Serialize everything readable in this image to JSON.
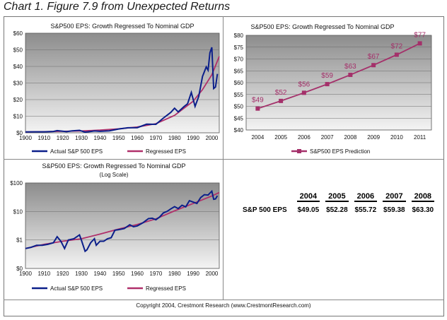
{
  "header": "Chart 1. Figure 7.9 from Unexpected Returns",
  "copyright": "Copyright 2004, Crestmont Research (www.CrestmontResearch.com)",
  "colors": {
    "actual": "#0b1f8a",
    "regressed": "#b0306a",
    "prediction": "#a4306a",
    "plot_bg_top": "#8c8c8c",
    "plot_bg_bottom": "#f4f4f4"
  },
  "chart_data": [
    {
      "type": "line",
      "title": "S&P500 EPS: Growth Regressed To Nominal GDP",
      "ylim": [
        0,
        60
      ],
      "yticks": [
        0,
        10,
        20,
        30,
        40,
        50,
        60
      ],
      "ytick_labels": [
        "$0",
        "$10",
        "$20",
        "$30",
        "$40",
        "$50",
        "$60"
      ],
      "xlim": [
        1900,
        2004
      ],
      "xticks": [
        1900,
        1910,
        1920,
        1930,
        1940,
        1950,
        1960,
        1970,
        1980,
        1990,
        2000
      ],
      "grid": true,
      "legend": "bottom",
      "series": [
        {
          "name": "Actual S&P 500 EPS",
          "x": [
            1900,
            1905,
            1910,
            1915,
            1917,
            1920,
            1922,
            1925,
            1929,
            1932,
            1935,
            1937,
            1940,
            1945,
            1950,
            1955,
            1960,
            1965,
            1970,
            1974,
            1978,
            1980,
            1982,
            1985,
            1987,
            1989,
            1991,
            1993,
            1995,
            1997,
            1998,
            1999,
            2000,
            2001,
            2002,
            2003
          ],
          "values": [
            0.5,
            0.6,
            0.6,
            0.8,
            1.3,
            1.0,
            0.7,
            1.2,
            1.5,
            0.4,
            0.8,
            1.1,
            0.9,
            1.2,
            2.3,
            3.0,
            3.1,
            5.2,
            5.1,
            8.9,
            12.3,
            14.8,
            12.6,
            15.7,
            17.5,
            24.3,
            15.9,
            21.9,
            33.9,
            39.7,
            37.7,
            48.2,
            51.5,
            26.7,
            27.6,
            35.5
          ]
        },
        {
          "name": "Regressed EPS",
          "x": [
            1900,
            1910,
            1920,
            1930,
            1940,
            1950,
            1960,
            1970,
            1980,
            1990,
            1995,
            2000,
            2004
          ],
          "values": [
            0.5,
            0.7,
            0.9,
            1.1,
            1.6,
            2.4,
            3.5,
            5.5,
            10.5,
            19.0,
            26.0,
            35.0,
            46.0
          ]
        }
      ]
    },
    {
      "type": "line",
      "title": "S&P500 EPS: Growth Regressed To Nominal GDP",
      "ylim": [
        40,
        80
      ],
      "yticks": [
        40,
        45,
        50,
        55,
        60,
        65,
        70,
        75,
        80
      ],
      "ytick_labels": [
        "$40",
        "$45",
        "$50",
        "$55",
        "$60",
        "$65",
        "$70",
        "$75",
        "$80"
      ],
      "categories": [
        "2004",
        "2005",
        "2006",
        "2007",
        "2008",
        "2009",
        "2010",
        "2011"
      ],
      "grid": true,
      "legend": "bottom",
      "series": [
        {
          "name": "S&P500 EPS Prediction",
          "values": [
            49.05,
            52.28,
            55.72,
            59.38,
            63.3,
            67.4,
            71.8,
            76.6
          ],
          "data_labels": [
            "$49",
            "$52",
            "$56",
            "$59",
            "$63",
            "$67",
            "$72",
            "$77"
          ]
        }
      ]
    },
    {
      "type": "line",
      "title": "S&P500 EPS: Growth Regressed To Nominal GDP",
      "subtitle": "(Log Scale)",
      "yscale": "log",
      "ylim": [
        0.1,
        100
      ],
      "yticks": [
        0.1,
        1,
        10,
        100
      ],
      "ytick_labels": [
        "$0",
        "$1",
        "$10",
        "$100"
      ],
      "xlim": [
        1900,
        2004
      ],
      "xticks": [
        1900,
        1910,
        1920,
        1930,
        1940,
        1950,
        1960,
        1970,
        1980,
        1990,
        2000
      ],
      "grid": true,
      "legend": "bottom",
      "series": [
        {
          "name": "Actual S&P 500 EPS",
          "x": [
            1900,
            1903,
            1906,
            1909,
            1912,
            1915,
            1917,
            1919,
            1921,
            1923,
            1926,
            1929,
            1930,
            1932,
            1933,
            1935,
            1937,
            1938,
            1940,
            1942,
            1944,
            1946,
            1948,
            1950,
            1953,
            1956,
            1958,
            1960,
            1963,
            1966,
            1968,
            1970,
            1972,
            1974,
            1976,
            1978,
            1980,
            1982,
            1984,
            1986,
            1988,
            1990,
            1992,
            1994,
            1996,
            1998,
            2000,
            2001,
            2002,
            2003
          ],
          "values": [
            0.5,
            0.55,
            0.65,
            0.65,
            0.7,
            0.8,
            1.3,
            0.9,
            0.5,
            1.0,
            1.1,
            1.5,
            1.0,
            0.4,
            0.45,
            0.8,
            1.1,
            0.65,
            0.9,
            0.9,
            1.1,
            1.2,
            2.2,
            2.3,
            2.5,
            3.4,
            2.9,
            3.1,
            4.0,
            5.6,
            5.8,
            5.1,
            6.4,
            8.9,
            10.0,
            12.3,
            14.8,
            12.6,
            16.6,
            14.5,
            23.8,
            21.3,
            19.1,
            30.6,
            38.7,
            37.7,
            51.5,
            26.7,
            27.6,
            35.5
          ]
        },
        {
          "name": "Regressed EPS",
          "x": [
            1900,
            1910,
            1920,
            1930,
            1940,
            1950,
            1960,
            1970,
            1980,
            1990,
            2000,
            2004
          ],
          "values": [
            0.5,
            0.7,
            0.9,
            1.1,
            1.6,
            2.4,
            3.5,
            5.5,
            10.5,
            19.0,
            35.0,
            46.0
          ]
        }
      ]
    }
  ],
  "table": {
    "years": [
      "2004",
      "2005",
      "2006",
      "2007",
      "2008"
    ],
    "row_label": "S&P 500 EPS",
    "values": [
      "$49.05",
      "$52.28",
      "$55.72",
      "$59.38",
      "$63.30"
    ]
  }
}
